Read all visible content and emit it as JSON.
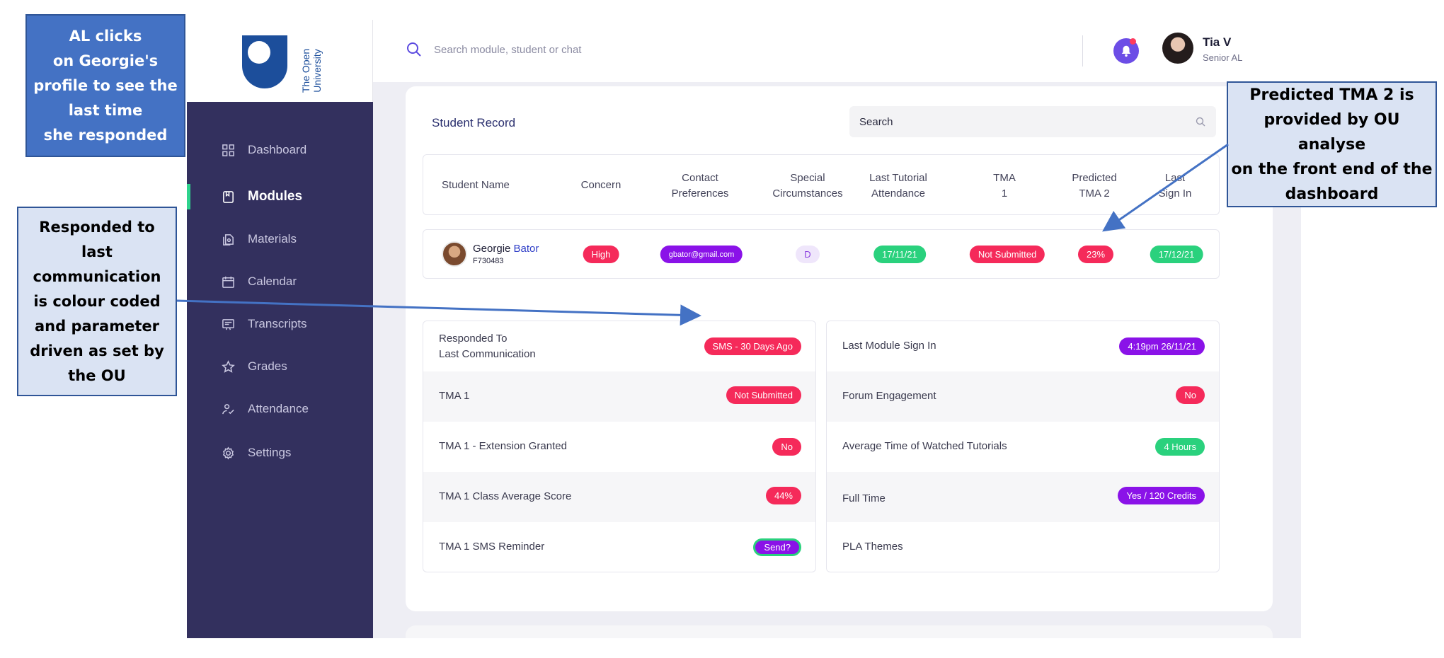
{
  "annotations": {
    "callout_1": "AL clicks\non Georgie's\nprofile to see the\nlast time\nshe responded",
    "callout_2": "Responded to\nlast\ncommunication\nis colour coded\nand parameter\ndriven as set by\nthe OU",
    "callout_3": "Predicted TMA 2 is\nprovided by OU analyse\non the front end of the\ndashboard"
  },
  "logo": {
    "text": "The Open University"
  },
  "sidebar": {
    "items": [
      {
        "label": "Dashboard",
        "icon": "grid-icon"
      },
      {
        "label": "Modules",
        "icon": "book-icon",
        "active": true
      },
      {
        "label": "Materials",
        "icon": "files-icon"
      },
      {
        "label": "Calendar",
        "icon": "calendar-icon"
      },
      {
        "label": "Transcripts",
        "icon": "transcript-icon"
      },
      {
        "label": "Grades",
        "icon": "star-icon"
      },
      {
        "label": "Attendance",
        "icon": "user-check-icon"
      },
      {
        "label": "Settings",
        "icon": "gear-icon"
      }
    ]
  },
  "header": {
    "search_placeholder": "Search module, student or chat",
    "user_name": "Tia V",
    "user_role": "Senior AL"
  },
  "card": {
    "title": "Student Record",
    "search_text": "Search",
    "columns": [
      "Student Name",
      "Concern",
      "Contact\nPreferences",
      "Special\nCircumstances",
      "Last Tutorial\nAttendance",
      "TMA\n1",
      "Predicted\nTMA 2",
      "Last\nSign In"
    ],
    "student": {
      "first_name": "Georgie",
      "last_name": "Bator",
      "id": "F730483",
      "concern": "High",
      "contact": "gbator@gmail.com",
      "special": "D",
      "last_tutorial": "17/11/21",
      "tma1": "Not Submitted",
      "predicted_tma2": "23%",
      "last_sign_in": "17/12/21"
    },
    "left_panel": [
      {
        "label": "Responded To\nLast Communication",
        "value": "SMS - 30 Days Ago",
        "color": "#f52a5a"
      },
      {
        "label": "TMA 1",
        "value": "Not Submitted",
        "color": "#f52a5a"
      },
      {
        "label": "TMA 1 - Extension Granted",
        "value": "No",
        "color": "#f52a5a"
      },
      {
        "label": "TMA 1 Class Average Score",
        "value": "44%",
        "color": "#f52a5a"
      },
      {
        "label": "TMA 1 SMS Reminder",
        "value": "Send?",
        "color": "#8a12e8"
      }
    ],
    "right_panel": [
      {
        "label": "Last Module Sign In",
        "value": "4:19pm 26/11/21",
        "color": "#8a12e8"
      },
      {
        "label": "Forum Engagement",
        "value": "No",
        "color": "#f52a5a"
      },
      {
        "label": "Average Time of Watched Tutorials",
        "value": "4 Hours",
        "color": "#2ad17d"
      },
      {
        "label": "Full Time",
        "value": "Yes / 120 Credits",
        "color": "#8a12e8"
      },
      {
        "label": "PLA Themes",
        "value": ""
      }
    ]
  },
  "colors": {
    "sidebar": "#33305e",
    "accent_green": "#2fd38d",
    "red": "#f52a5a",
    "purple": "#8a12e8",
    "green": "#2ad17d",
    "callout_blue": "#4472c4",
    "callout_light": "#dae3f3"
  }
}
